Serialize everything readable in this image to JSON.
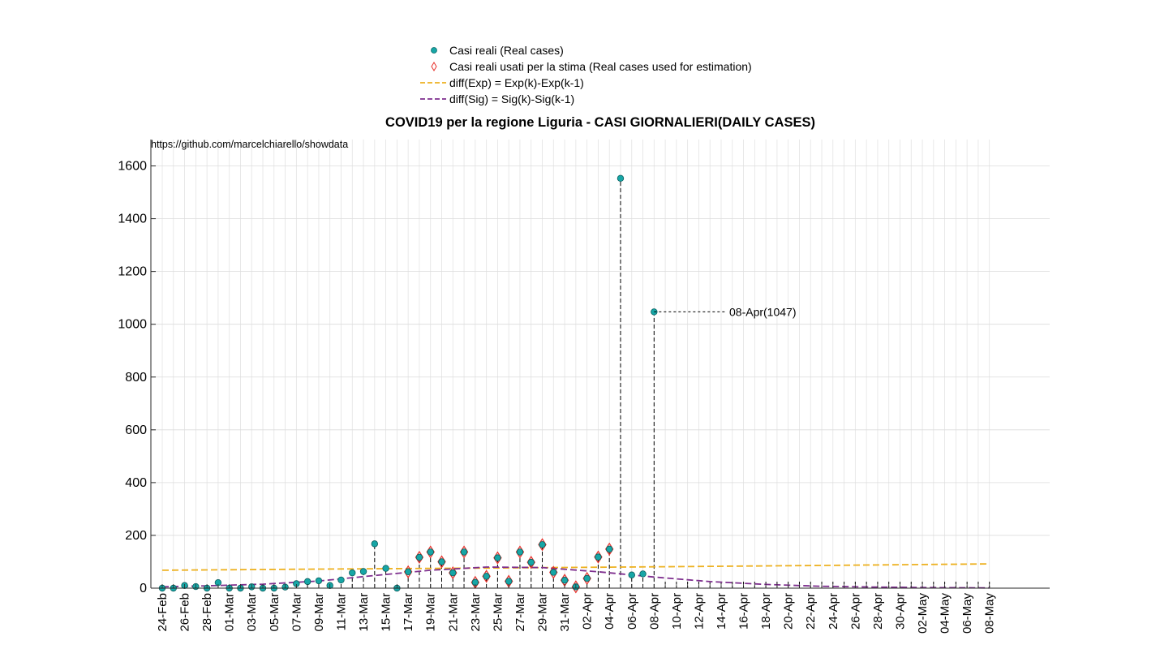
{
  "title": "COVID19 per la regione Liguria - CASI GIORNALIERI(DAILY CASES)",
  "source_note": "https://github.com/marcelchiarello/showdata",
  "legend": [
    {
      "label": "Casi reali (Real cases)",
      "symbol": "dot",
      "color": "#17a6a6"
    },
    {
      "label": "Casi reali usati per la stima (Real cases used for estimation)",
      "symbol": "diamond",
      "color": "#e8302a"
    },
    {
      "label": "diff(Exp) = Exp(k)-Exp(k-1)",
      "symbol": "dashed-line",
      "color": "#edb120"
    },
    {
      "label": "diff(Sig) = Sig(k)-Sig(k-1)",
      "symbol": "dashed-line",
      "color": "#7e2f8e"
    }
  ],
  "annotation": "08-Apr(1047)",
  "chart_data": {
    "type": "scatter",
    "title": "COVID19 per la regione Liguria - CASI GIORNALIERI(DAILY CASES)",
    "xlabel": "",
    "ylabel": "",
    "ylim": [
      0,
      1700
    ],
    "yticks": [
      0,
      200,
      400,
      600,
      800,
      1000,
      1200,
      1400,
      1600
    ],
    "grid": true,
    "legend_position": "top-center (outside)",
    "x_start": "24-Feb",
    "x_end": "08-May",
    "xtick_labels": [
      "24-Feb",
      "26-Feb",
      "28-Feb",
      "01-Mar",
      "03-Mar",
      "05-Mar",
      "07-Mar",
      "09-Mar",
      "11-Mar",
      "13-Mar",
      "15-Mar",
      "17-Mar",
      "19-Mar",
      "21-Mar",
      "23-Mar",
      "25-Mar",
      "27-Mar",
      "29-Mar",
      "31-Mar",
      "02-Apr",
      "04-Apr",
      "06-Apr",
      "08-Apr",
      "10-Apr",
      "12-Apr",
      "14-Apr",
      "16-Apr",
      "18-Apr",
      "20-Apr",
      "22-Apr",
      "24-Apr",
      "26-Apr",
      "28-Apr",
      "30-Apr",
      "02-May",
      "04-May",
      "06-May",
      "08-May"
    ],
    "series": [
      {
        "name": "Casi reali (Real cases)",
        "marker": "dot",
        "color": "#17a6a6",
        "points": [
          {
            "x": "24-Feb",
            "y": 0
          },
          {
            "x": "25-Feb",
            "y": 0
          },
          {
            "x": "26-Feb",
            "y": 10
          },
          {
            "x": "27-Feb",
            "y": 6
          },
          {
            "x": "28-Feb",
            "y": 0
          },
          {
            "x": "29-Feb",
            "y": 21
          },
          {
            "x": "01-Mar",
            "y": 0
          },
          {
            "x": "02-Mar",
            "y": 0
          },
          {
            "x": "03-Mar",
            "y": 5
          },
          {
            "x": "04-Mar",
            "y": 0
          },
          {
            "x": "05-Mar",
            "y": 0
          },
          {
            "x": "06-Mar",
            "y": 4
          },
          {
            "x": "07-Mar",
            "y": 17
          },
          {
            "x": "08-Mar",
            "y": 25
          },
          {
            "x": "09-Mar",
            "y": 28
          },
          {
            "x": "10-Mar",
            "y": 10
          },
          {
            "x": "11-Mar",
            "y": 31
          },
          {
            "x": "12-Mar",
            "y": 58
          },
          {
            "x": "13-Mar",
            "y": 63
          },
          {
            "x": "14-Mar",
            "y": 168
          },
          {
            "x": "15-Mar",
            "y": 75
          },
          {
            "x": "16-Mar",
            "y": 0
          },
          {
            "x": "17-Mar",
            "y": 62
          },
          {
            "x": "18-Mar",
            "y": 117
          },
          {
            "x": "19-Mar",
            "y": 137
          },
          {
            "x": "20-Mar",
            "y": 100
          },
          {
            "x": "21-Mar",
            "y": 58
          },
          {
            "x": "22-Mar",
            "y": 137
          },
          {
            "x": "23-Mar",
            "y": 22
          },
          {
            "x": "24-Mar",
            "y": 45
          },
          {
            "x": "25-Mar",
            "y": 115
          },
          {
            "x": "26-Mar",
            "y": 26
          },
          {
            "x": "27-Mar",
            "y": 137
          },
          {
            "x": "28-Mar",
            "y": 98
          },
          {
            "x": "29-Mar",
            "y": 165
          },
          {
            "x": "30-Mar",
            "y": 60
          },
          {
            "x": "31-Mar",
            "y": 30
          },
          {
            "x": "01-Apr",
            "y": 5
          },
          {
            "x": "02-Apr",
            "y": 37
          },
          {
            "x": "03-Apr",
            "y": 118
          },
          {
            "x": "04-Apr",
            "y": 148
          },
          {
            "x": "05-Apr",
            "y": 1553
          },
          {
            "x": "06-Apr",
            "y": 50
          },
          {
            "x": "07-Apr",
            "y": 54
          },
          {
            "x": "08-Apr",
            "y": 1047
          }
        ]
      },
      {
        "name": "Casi reali usati per la stima (Real cases used for estimation)",
        "marker": "diamond",
        "color": "#e8302a",
        "points": [
          {
            "x": "17-Mar",
            "y": 62
          },
          {
            "x": "18-Mar",
            "y": 117
          },
          {
            "x": "19-Mar",
            "y": 137
          },
          {
            "x": "20-Mar",
            "y": 100
          },
          {
            "x": "21-Mar",
            "y": 58
          },
          {
            "x": "22-Mar",
            "y": 137
          },
          {
            "x": "23-Mar",
            "y": 22
          },
          {
            "x": "24-Mar",
            "y": 45
          },
          {
            "x": "25-Mar",
            "y": 115
          },
          {
            "x": "26-Mar",
            "y": 26
          },
          {
            "x": "27-Mar",
            "y": 137
          },
          {
            "x": "28-Mar",
            "y": 98
          },
          {
            "x": "29-Mar",
            "y": 165
          },
          {
            "x": "30-Mar",
            "y": 60
          },
          {
            "x": "31-Mar",
            "y": 30
          },
          {
            "x": "01-Apr",
            "y": 5
          },
          {
            "x": "02-Apr",
            "y": 37
          },
          {
            "x": "03-Apr",
            "y": 118
          },
          {
            "x": "04-Apr",
            "y": 148
          }
        ]
      },
      {
        "name": "diff(Exp) = Exp(k)-Exp(k-1)",
        "type": "line",
        "style": "dashed",
        "color": "#edb120",
        "points": [
          {
            "x": "24-Feb",
            "y": 68
          },
          {
            "x": "08-Mar",
            "y": 72
          },
          {
            "x": "23-Mar",
            "y": 76
          },
          {
            "x": "08-Apr",
            "y": 81
          },
          {
            "x": "23-Apr",
            "y": 86
          },
          {
            "x": "08-May",
            "y": 92
          }
        ]
      },
      {
        "name": "diff(Sig) = Sig(k)-Sig(k-1)",
        "type": "line",
        "style": "dashed",
        "color": "#7e2f8e",
        "points": [
          {
            "x": "24-Feb",
            "y": 5
          },
          {
            "x": "28-Feb",
            "y": 9
          },
          {
            "x": "04-Mar",
            "y": 15
          },
          {
            "x": "09-Mar",
            "y": 27
          },
          {
            "x": "14-Mar",
            "y": 48
          },
          {
            "x": "19-Mar",
            "y": 68
          },
          {
            "x": "24-Mar",
            "y": 80
          },
          {
            "x": "29-Mar",
            "y": 78
          },
          {
            "x": "03-Apr",
            "y": 62
          },
          {
            "x": "08-Apr",
            "y": 42
          },
          {
            "x": "13-Apr",
            "y": 25
          },
          {
            "x": "18-Apr",
            "y": 14
          },
          {
            "x": "23-Apr",
            "y": 7
          },
          {
            "x": "28-Apr",
            "y": 4
          },
          {
            "x": "03-May",
            "y": 2
          },
          {
            "x": "08-May",
            "y": 1
          }
        ]
      }
    ]
  }
}
